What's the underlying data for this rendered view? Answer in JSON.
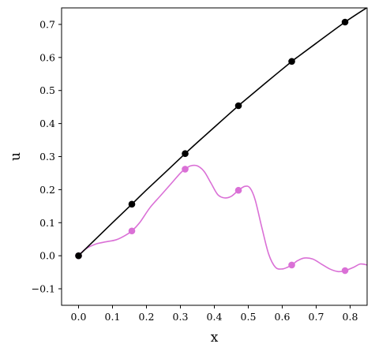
{
  "chart_data": {
    "type": "line",
    "xlabel": "x",
    "ylabel": "u",
    "title": "",
    "xlim": [
      -0.05,
      0.85
    ],
    "ylim": [
      -0.15,
      0.75
    ],
    "xticks": [
      0.0,
      0.1,
      0.2,
      0.3,
      0.4,
      0.5,
      0.6,
      0.7,
      0.8
    ],
    "xtick_labels": [
      "0.0",
      "0.1",
      "0.2",
      "0.3",
      "0.4",
      "0.5",
      "0.6",
      "0.7",
      "0.8"
    ],
    "yticks": [
      -0.1,
      0.0,
      0.1,
      0.2,
      0.3,
      0.4,
      0.5,
      0.6,
      0.7
    ],
    "ytick_labels": [
      "−0.1",
      "0.0",
      "0.1",
      "0.2",
      "0.3",
      "0.4",
      "0.5",
      "0.6",
      "0.7"
    ],
    "grid": false,
    "legend": false,
    "series": [
      {
        "color": "#000000",
        "line": {
          "x": [
            0.0,
            0.05,
            0.1,
            0.157,
            0.2,
            0.25,
            0.314,
            0.35,
            0.4,
            0.471,
            0.5,
            0.55,
            0.628,
            0.65,
            0.7,
            0.785,
            0.85
          ],
          "y": [
            0.0,
            0.05,
            0.1,
            0.156,
            0.199,
            0.247,
            0.309,
            0.343,
            0.389,
            0.454,
            0.479,
            0.522,
            0.588,
            0.605,
            0.643,
            0.707,
            0.751
          ]
        },
        "markers": {
          "x": [
            0.0,
            0.157,
            0.314,
            0.471,
            0.628,
            0.785
          ],
          "y": [
            0.0,
            0.156,
            0.309,
            0.454,
            0.588,
            0.707
          ]
        }
      },
      {
        "color": "#da70d6",
        "line": {
          "x": [
            0.0,
            0.02,
            0.05,
            0.08,
            0.11,
            0.135,
            0.157,
            0.18,
            0.21,
            0.24,
            0.27,
            0.3,
            0.314,
            0.33,
            0.35,
            0.37,
            0.39,
            0.41,
            0.43,
            0.45,
            0.471,
            0.49,
            0.505,
            0.52,
            0.54,
            0.56,
            0.58,
            0.6,
            0.615,
            0.628,
            0.645,
            0.665,
            0.69,
            0.715,
            0.74,
            0.765,
            0.785,
            0.81,
            0.83,
            0.85
          ],
          "y": [
            0.0,
            0.02,
            0.035,
            0.042,
            0.048,
            0.06,
            0.075,
            0.1,
            0.145,
            0.18,
            0.215,
            0.25,
            0.262,
            0.272,
            0.272,
            0.255,
            0.22,
            0.185,
            0.175,
            0.18,
            0.198,
            0.21,
            0.205,
            0.17,
            0.085,
            0.005,
            -0.035,
            -0.04,
            -0.035,
            -0.028,
            -0.015,
            -0.007,
            -0.01,
            -0.025,
            -0.04,
            -0.048,
            -0.045,
            -0.035,
            -0.025,
            -0.028
          ]
        },
        "markers": {
          "x": [
            0.0,
            0.157,
            0.314,
            0.471,
            0.628,
            0.785
          ],
          "y": [
            0.0,
            0.075,
            0.262,
            0.198,
            -0.028,
            -0.045
          ]
        }
      }
    ]
  }
}
